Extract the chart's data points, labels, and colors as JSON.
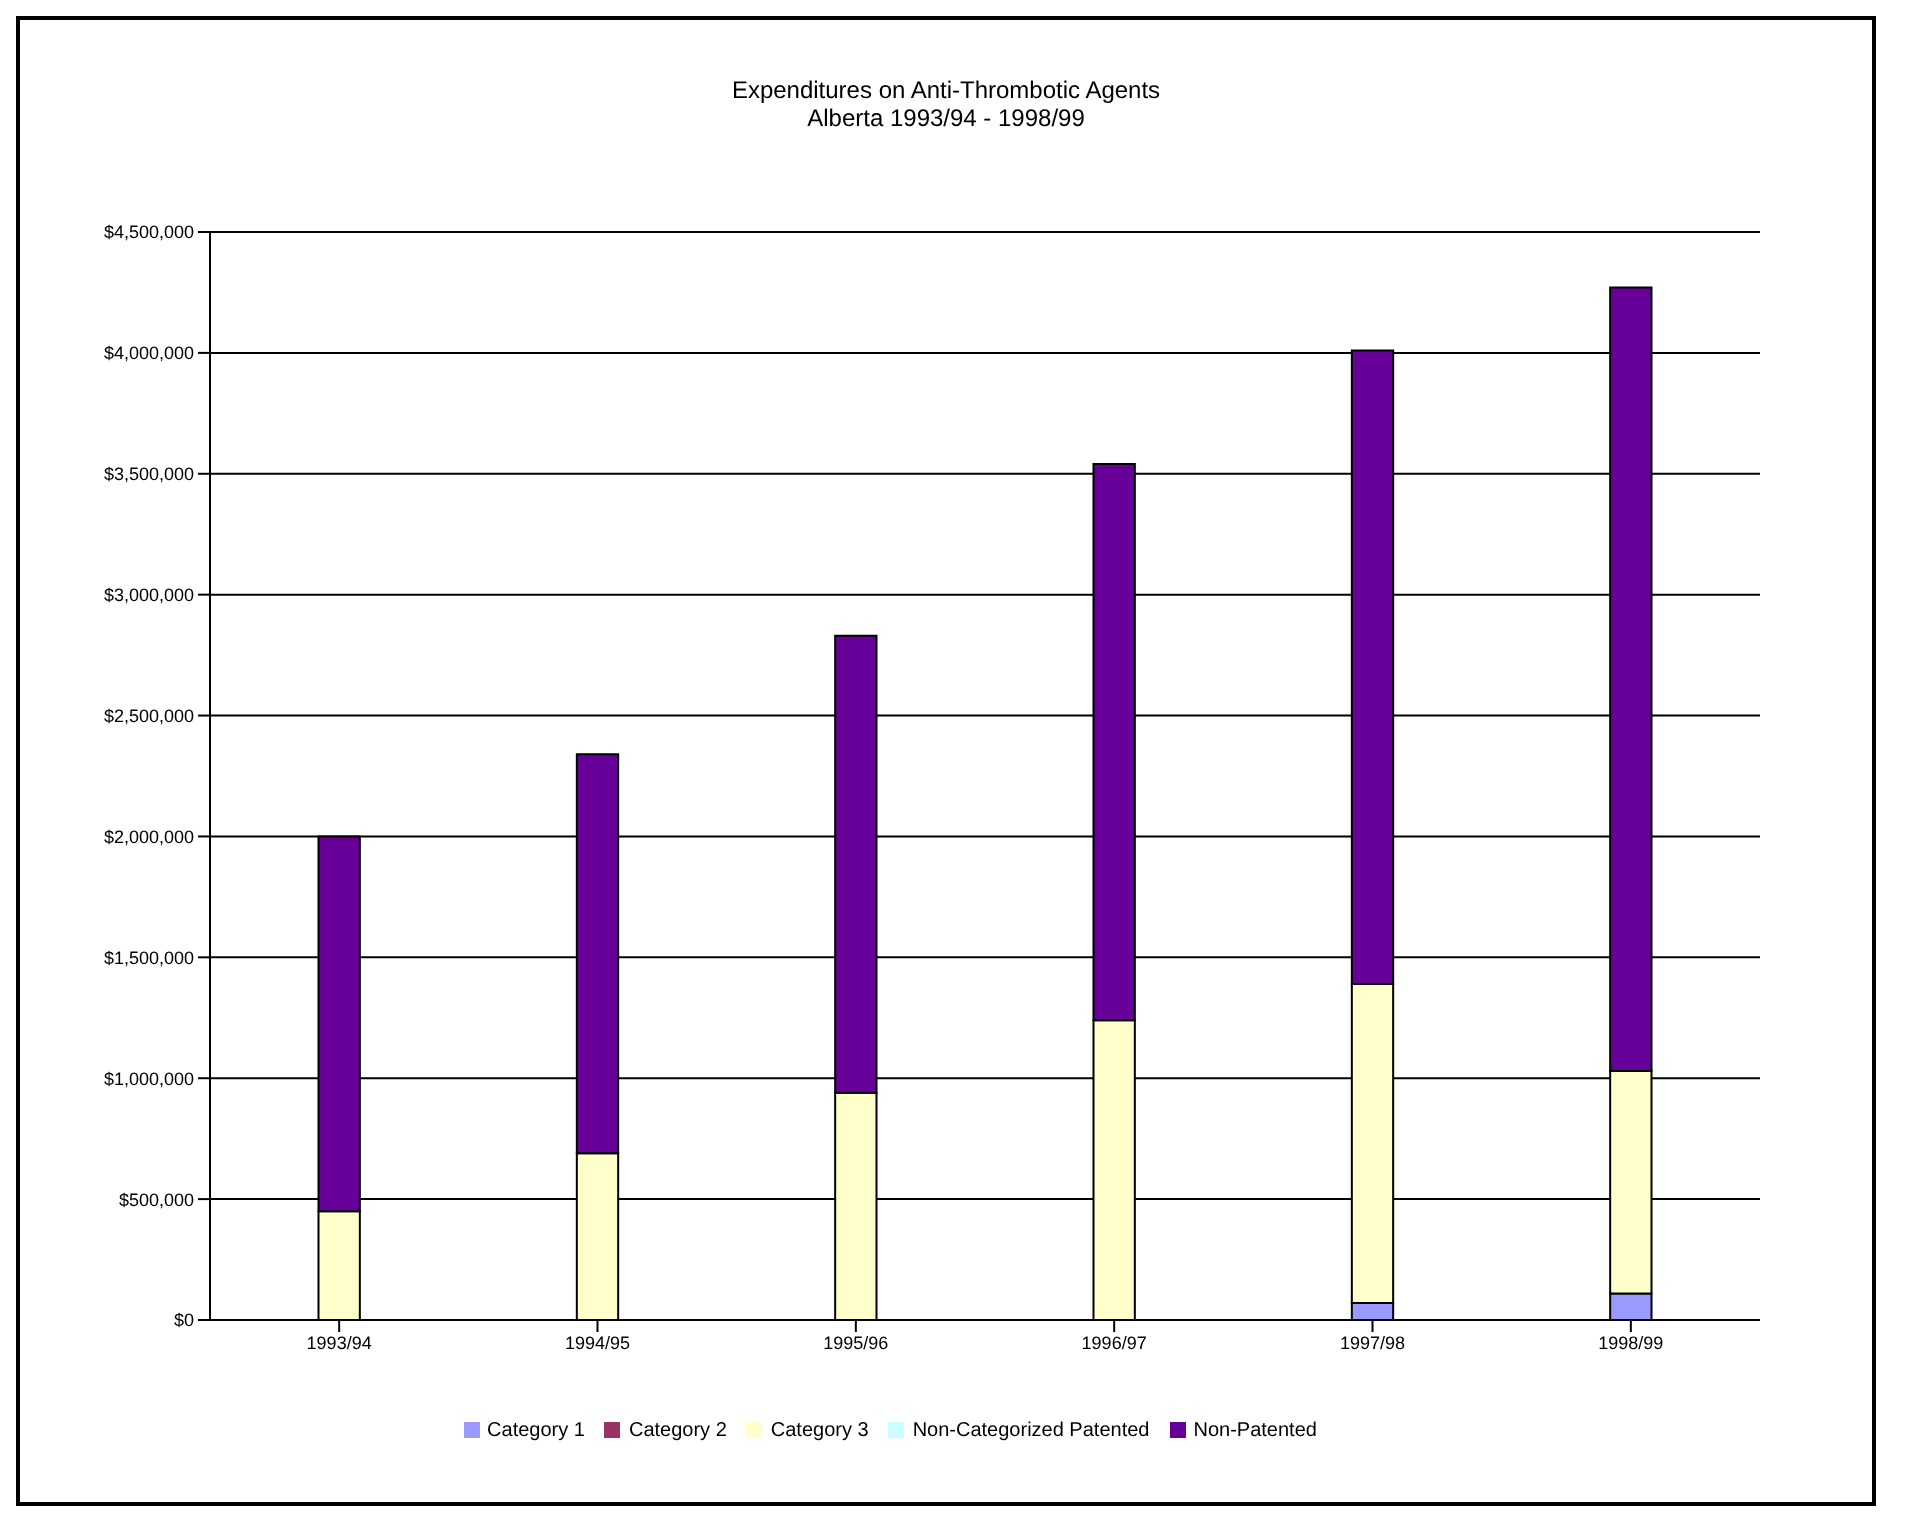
{
  "chart_data": {
    "type": "bar",
    "title": "Expenditures on Anti-Thrombotic Agents",
    "subtitle": "Alberta 1993/94 - 1998/99",
    "categories": [
      "1993/94",
      "1994/95",
      "1995/96",
      "1996/97",
      "1997/98",
      "1998/99"
    ],
    "stacked": true,
    "series": [
      {
        "name": "Category 1",
        "color": "#9999ff",
        "values": [
          0,
          0,
          0,
          0,
          70000,
          110000
        ]
      },
      {
        "name": "Category 2",
        "color": "#993366",
        "values": [
          0,
          0,
          0,
          0,
          0,
          0
        ]
      },
      {
        "name": "Category 3",
        "color": "#ffffcc",
        "values": [
          450000,
          690000,
          940000,
          1240000,
          1320000,
          920000
        ]
      },
      {
        "name": "Non-Categorized Patented",
        "color": "#ccffff",
        "values": [
          0,
          0,
          0,
          0,
          0,
          0
        ]
      },
      {
        "name": "Non-Patented",
        "color": "#660099",
        "values": [
          1550000,
          1650000,
          1890000,
          2300000,
          2620000,
          3240000
        ]
      }
    ],
    "ylim": [
      0,
      4500000
    ],
    "yticks": [
      {
        "value": 0,
        "label": "$0"
      },
      {
        "value": 500000,
        "label": "$500,000"
      },
      {
        "value": 1000000,
        "label": "$1,000,000"
      },
      {
        "value": 1500000,
        "label": "$1,500,000"
      },
      {
        "value": 2000000,
        "label": "$2,000,000"
      },
      {
        "value": 2500000,
        "label": "$2,500,000"
      },
      {
        "value": 3000000,
        "label": "$3,000,000"
      },
      {
        "value": 3500000,
        "label": "$3,500,000"
      },
      {
        "value": 4000000,
        "label": "$4,000,000"
      },
      {
        "value": 4500000,
        "label": "$4,500,000"
      }
    ],
    "grid": "y",
    "legend": "bottom"
  }
}
